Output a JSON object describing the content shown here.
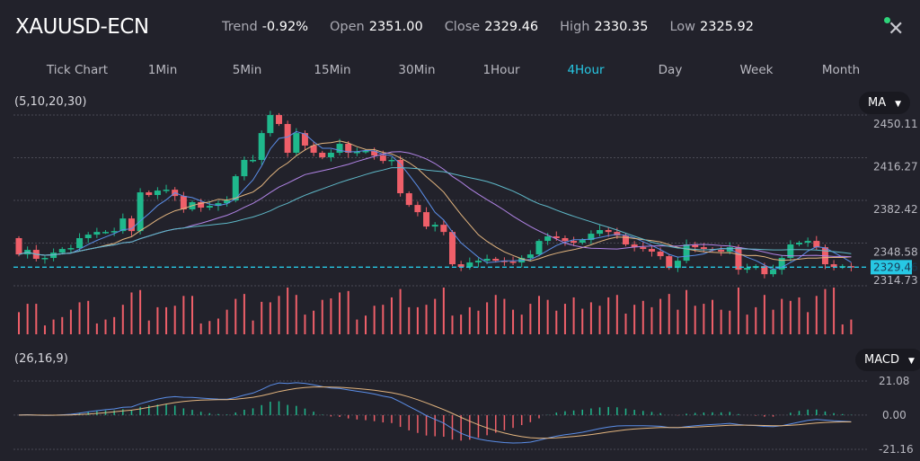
{
  "header": {
    "title": "XAUUSD-ECN",
    "stats": [
      {
        "label": "Trend",
        "value": "-0.92%"
      },
      {
        "label": "Open",
        "value": "2351.00"
      },
      {
        "label": "Close",
        "value": "2329.46"
      },
      {
        "label": "High",
        "value": "2330.35"
      },
      {
        "label": "Low",
        "value": "2325.92"
      }
    ],
    "close_icon": "close-icon",
    "status_color": "#2ed47a"
  },
  "tabs": [
    {
      "label": "Tick Chart"
    },
    {
      "label": "1Min"
    },
    {
      "label": "5Min"
    },
    {
      "label": "15Min"
    },
    {
      "label": "30Min"
    },
    {
      "label": "1Hour"
    },
    {
      "label": "4Hour",
      "active": true
    },
    {
      "label": "Day"
    },
    {
      "label": "Week"
    },
    {
      "label": "Month"
    }
  ],
  "main_indicator": {
    "params": "(5,10,20,30)",
    "selector": "MA"
  },
  "sub_indicator": {
    "params": "(26,16,9)",
    "selector": "MACD"
  },
  "colors": {
    "up": "#1fb88c",
    "down": "#ef5f69",
    "ma5": "#5b8ee8",
    "ma10": "#e3b57f",
    "ma20": "#b184e6",
    "ma30": "#5fb9c9",
    "last_price": "#27c8e4"
  },
  "chart_data": {
    "type": "candlestick",
    "price_axis_ticks": [
      "2450.11",
      "2416.27",
      "2382.42",
      "2348.58",
      "2314.73"
    ],
    "price_range": [
      2314.73,
      2450.11
    ],
    "last_price": "2329.46",
    "macd_axis_ticks": [
      "21.08",
      "0.00",
      "-21.16"
    ],
    "macd_range": [
      -21.16,
      21.08
    ],
    "first_open": 2352.5,
    "closes": [
      2339.6,
      2343.2,
      2336.1,
      2336.8,
      2341.0,
      2343.9,
      2344.6,
      2352.5,
      2355.3,
      2357.4,
      2357.4,
      2358.1,
      2368.1,
      2358.1,
      2388.8,
      2386.7,
      2390.2,
      2390.9,
      2385.9,
      2375.3,
      2381.0,
      2376.7,
      2378.1,
      2380.2,
      2382.4,
      2401.6,
      2414.5,
      2414.5,
      2435.8,
      2450.1,
      2443.0,
      2420.2,
      2435.8,
      2425.9,
      2420.2,
      2416.6,
      2420.2,
      2427.3,
      2420.2,
      2420.9,
      2421.6,
      2418.0,
      2413.7,
      2414.5,
      2388.1,
      2378.8,
      2373.1,
      2361.7,
      2363.1,
      2357.4,
      2331.8,
      2329.6,
      2333.2,
      2334.6,
      2336.1,
      2334.6,
      2333.9,
      2333.2,
      2336.8,
      2339.6,
      2350.3,
      2353.9,
      2352.5,
      2350.3,
      2348.9,
      2351.0,
      2356.0,
      2358.9,
      2357.4,
      2354.6,
      2347.5,
      2345.3,
      2343.9,
      2341.8,
      2338.2,
      2328.9,
      2334.6,
      2347.5,
      2345.3,
      2343.9,
      2343.2,
      2341.8,
      2345.3,
      2327.5,
      2328.9,
      2330.3,
      2323.9,
      2327.5,
      2336.8,
      2347.5,
      2348.9,
      2350.3,
      2345.3,
      2331.8,
      2329.6,
      2330.3,
      2329.46
    ],
    "volumes": [
      45,
      62,
      62,
      18,
      30,
      35,
      50,
      65,
      68,
      22,
      30,
      35,
      60,
      85,
      90,
      28,
      55,
      55,
      58,
      78,
      78,
      22,
      27,
      32,
      50,
      72,
      82,
      28,
      66,
      65,
      78,
      95,
      80,
      40,
      48,
      70,
      73,
      85,
      88,
      30,
      38,
      58,
      60,
      75,
      92,
      55,
      55,
      60,
      72,
      95,
      38,
      40,
      55,
      48,
      65,
      80,
      72,
      50,
      40,
      62,
      78,
      70,
      48,
      62,
      75,
      52,
      65,
      58,
      75,
      80,
      42,
      60,
      68,
      55,
      72,
      82,
      50,
      90,
      58,
      62,
      70,
      50,
      48,
      95,
      40,
      55,
      80,
      50,
      72,
      68,
      75,
      45,
      78,
      92,
      95,
      20,
      30
    ],
    "moving_averages": [
      "MA5",
      "MA10",
      "MA20",
      "MA30"
    ],
    "macd": {
      "fast": 16,
      "slow": 26,
      "signal": 9
    }
  }
}
